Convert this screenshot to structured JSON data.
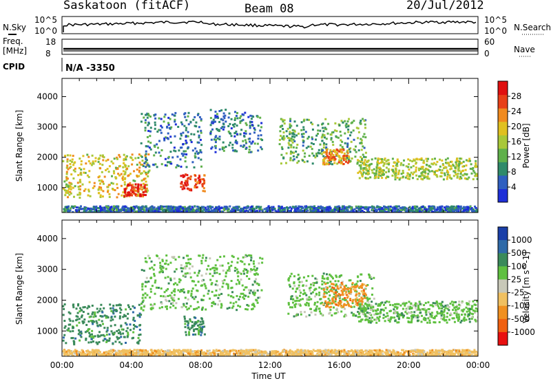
{
  "header": {
    "station": "Saskatoon (fitACF)",
    "beam": "Beam 08",
    "date": "20/Jul/2012"
  },
  "noise_panel": {
    "left_label": "N.Sky",
    "left_ticks": [
      "10^5",
      "10^0"
    ],
    "right_ticks": [
      "10^5",
      "10^0"
    ],
    "right_label": "N.Search"
  },
  "freq_panel": {
    "left_label_1": "Freq.",
    "left_label_2": "[MHz]",
    "left_ticks": [
      "18",
      "8"
    ],
    "right_ticks": [
      "60",
      "0"
    ],
    "right_label": "Nave"
  },
  "cpid": {
    "label": "CPID",
    "value": "N/A -3350"
  },
  "chart_data": [
    {
      "type": "heatmap",
      "panel": "power",
      "ylabel": "Slant Range [km]",
      "yticks": [
        1000,
        2000,
        3000,
        4000
      ],
      "ylim": [
        180,
        4600
      ],
      "xlim": [
        0,
        24
      ],
      "colorbar_label": "Power [dB]",
      "colorbar_ticks": [
        4,
        8,
        12,
        16,
        20,
        24,
        28
      ],
      "colorbar_range": [
        0,
        32
      ],
      "colorscale": [
        "#1e2fd8",
        "#2f5fc0",
        "#2f8a6a",
        "#5fb04a",
        "#a8c838",
        "#e0c020",
        "#f08a1e",
        "#e84018",
        "#e01010"
      ],
      "features": [
        {
          "t_start": 0.0,
          "t_end": 5.0,
          "r_lo": 700,
          "r_hi": 2150,
          "level": 0.6
        },
        {
          "t_start": 3.5,
          "t_end": 4.8,
          "r_lo": 750,
          "r_hi": 1150,
          "level": 0.95
        },
        {
          "t_start": 4.5,
          "t_end": 8.0,
          "r_lo": 1700,
          "r_hi": 3500,
          "level": 0.2
        },
        {
          "t_start": 6.8,
          "t_end": 7.4,
          "r_lo": 900,
          "r_hi": 1500,
          "level": 0.95
        },
        {
          "t_start": 7.6,
          "t_end": 8.2,
          "r_lo": 900,
          "r_hi": 1500,
          "level": 0.9
        },
        {
          "t_start": 8.5,
          "t_end": 11.5,
          "r_lo": 2200,
          "r_hi": 3600,
          "level": 0.2
        },
        {
          "t_start": 12.5,
          "t_end": 17.5,
          "r_lo": 1800,
          "r_hi": 3300,
          "level": 0.35
        },
        {
          "t_start": 15.0,
          "t_end": 16.5,
          "r_lo": 1800,
          "r_hi": 2300,
          "level": 0.75
        },
        {
          "t_start": 17.0,
          "t_end": 24.0,
          "r_lo": 1300,
          "r_hi": 2000,
          "level": 0.5
        },
        {
          "t_start": 0.0,
          "t_end": 24.0,
          "r_lo": 200,
          "r_hi": 420,
          "level": 0.15
        }
      ]
    },
    {
      "type": "heatmap",
      "panel": "velocity",
      "xlabel": "Time UT",
      "ylabel": "Slant Range [km]",
      "yticks": [
        1000,
        2000,
        3000,
        4000
      ],
      "ylim": [
        180,
        4600
      ],
      "xticks": [
        "00:00",
        "04:00",
        "08:00",
        "12:00",
        "16:00",
        "20:00",
        "00:00"
      ],
      "xlim": [
        0,
        24
      ],
      "colorbar_label": "Velocity [m s^-1]",
      "colorbar_ticks": [
        "1000",
        "500",
        "100",
        "25",
        "-25",
        "-100",
        "-500",
        "-1000"
      ],
      "colorscale": [
        "#1a3fa8",
        "#2f6aa8",
        "#3a8a5a",
        "#5fc040",
        "#c8c8b8",
        "#f0c060",
        "#f09020",
        "#f06010",
        "#e81010"
      ],
      "features": [
        {
          "t_start": 0.0,
          "t_end": 4.5,
          "r_lo": 600,
          "r_hi": 1900,
          "value": "100"
        },
        {
          "t_start": 4.5,
          "t_end": 11.5,
          "r_lo": 1700,
          "r_hi": 3500,
          "value": "25"
        },
        {
          "t_start": 7.0,
          "t_end": 8.2,
          "r_lo": 900,
          "r_hi": 1500,
          "value": "100"
        },
        {
          "t_start": 13.0,
          "t_end": 18.0,
          "r_lo": 1500,
          "r_hi": 2900,
          "value": "25"
        },
        {
          "t_start": 15.0,
          "t_end": 17.5,
          "r_lo": 1800,
          "r_hi": 2600,
          "value": "-500"
        },
        {
          "t_start": 17.0,
          "t_end": 24.0,
          "r_lo": 1300,
          "r_hi": 2000,
          "value": "25"
        },
        {
          "t_start": 0.0,
          "t_end": 24.0,
          "r_lo": 200,
          "r_hi": 420,
          "value": "-100"
        }
      ]
    }
  ]
}
